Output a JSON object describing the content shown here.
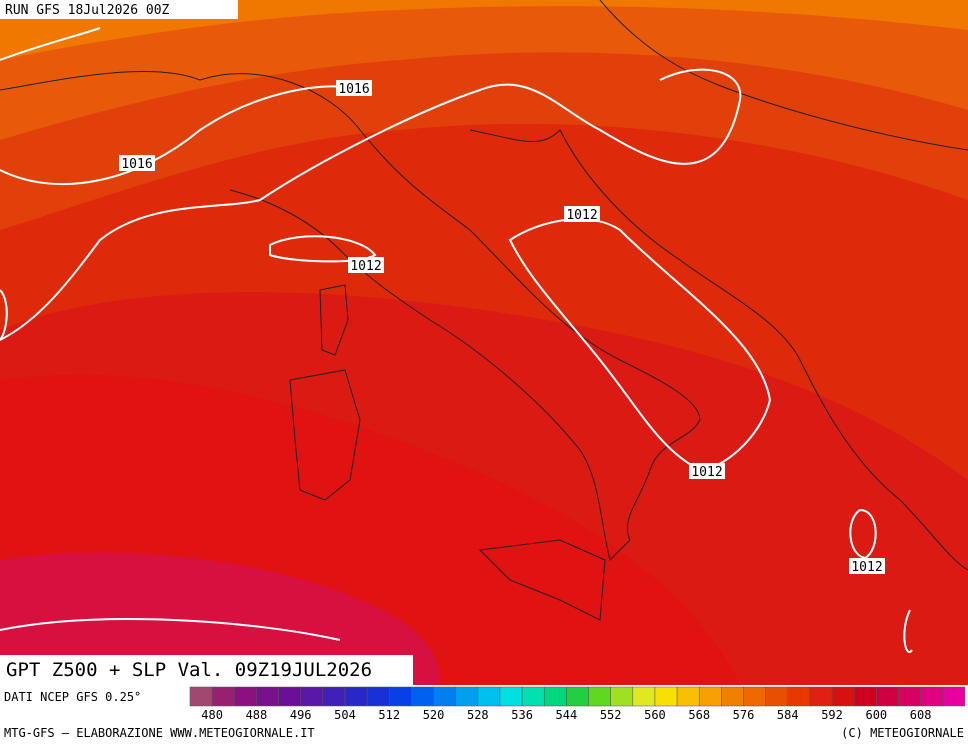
{
  "header": {
    "run": "RUN GFS 18Jul2026 00Z"
  },
  "isobar_labels": [
    "1016",
    "1016",
    "1012",
    "1012",
    "1012",
    "1012"
  ],
  "title": "GPT Z500 + SLP Val. 09Z19JUL2026",
  "source": "DATI NCEP GFS 0.25°",
  "colorbar": {
    "labels": [
      "480",
      "488",
      "496",
      "504",
      "512",
      "520",
      "528",
      "536",
      "544",
      "552",
      "560",
      "568",
      "576",
      "584",
      "592",
      "600",
      "608"
    ],
    "colors": [
      "#a04870",
      "#982070",
      "#8c1080",
      "#7a108c",
      "#6a1098",
      "#5a18a8",
      "#4020b8",
      "#2828c8",
      "#1830d8",
      "#0840e8",
      "#0060f0",
      "#0080f0",
      "#00a0f0",
      "#00c0f0",
      "#00e0e0",
      "#00e0b0",
      "#00d880",
      "#20d040",
      "#60d820",
      "#a0e020",
      "#e0e820",
      "#f8e000",
      "#f8c000",
      "#f8a000",
      "#f08000",
      "#f06800",
      "#e85000",
      "#e83800",
      "#e02010",
      "#d81010",
      "#d00020",
      "#d00040",
      "#d80060",
      "#e00080",
      "#e800a0"
    ]
  },
  "footer": {
    "left": "MTG-GFS — ELABORAZIONE WWW.METEOGIORNALE.IT",
    "right": "(C) METEOGIORNALE"
  }
}
